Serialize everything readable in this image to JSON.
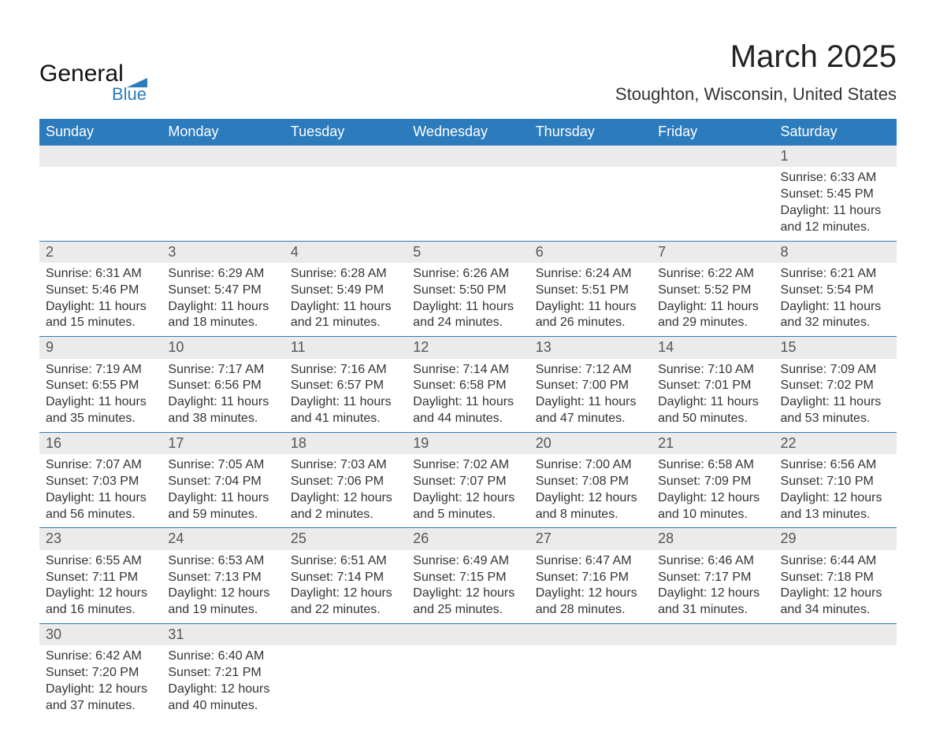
{
  "logo": {
    "text1": "General",
    "text2": "Blue",
    "icon_color": "#2b7bbd"
  },
  "header": {
    "month_title": "March 2025",
    "location": "Stoughton, Wisconsin, United States"
  },
  "colors": {
    "header_bg": "#2b7bbd",
    "header_text": "#ffffff",
    "daynum_bg": "#ebebeb",
    "row_border": "#2b7bbd",
    "body_text": "#333333"
  },
  "days_of_week": [
    "Sunday",
    "Monday",
    "Tuesday",
    "Wednesday",
    "Thursday",
    "Friday",
    "Saturday"
  ],
  "weeks": [
    [
      null,
      null,
      null,
      null,
      null,
      null,
      {
        "n": "1",
        "sunrise": "6:33 AM",
        "sunset": "5:45 PM",
        "daylight": "11 hours and 12 minutes."
      }
    ],
    [
      {
        "n": "2",
        "sunrise": "6:31 AM",
        "sunset": "5:46 PM",
        "daylight": "11 hours and 15 minutes."
      },
      {
        "n": "3",
        "sunrise": "6:29 AM",
        "sunset": "5:47 PM",
        "daylight": "11 hours and 18 minutes."
      },
      {
        "n": "4",
        "sunrise": "6:28 AM",
        "sunset": "5:49 PM",
        "daylight": "11 hours and 21 minutes."
      },
      {
        "n": "5",
        "sunrise": "6:26 AM",
        "sunset": "5:50 PM",
        "daylight": "11 hours and 24 minutes."
      },
      {
        "n": "6",
        "sunrise": "6:24 AM",
        "sunset": "5:51 PM",
        "daylight": "11 hours and 26 minutes."
      },
      {
        "n": "7",
        "sunrise": "6:22 AM",
        "sunset": "5:52 PM",
        "daylight": "11 hours and 29 minutes."
      },
      {
        "n": "8",
        "sunrise": "6:21 AM",
        "sunset": "5:54 PM",
        "daylight": "11 hours and 32 minutes."
      }
    ],
    [
      {
        "n": "9",
        "sunrise": "7:19 AM",
        "sunset": "6:55 PM",
        "daylight": "11 hours and 35 minutes."
      },
      {
        "n": "10",
        "sunrise": "7:17 AM",
        "sunset": "6:56 PM",
        "daylight": "11 hours and 38 minutes."
      },
      {
        "n": "11",
        "sunrise": "7:16 AM",
        "sunset": "6:57 PM",
        "daylight": "11 hours and 41 minutes."
      },
      {
        "n": "12",
        "sunrise": "7:14 AM",
        "sunset": "6:58 PM",
        "daylight": "11 hours and 44 minutes."
      },
      {
        "n": "13",
        "sunrise": "7:12 AM",
        "sunset": "7:00 PM",
        "daylight": "11 hours and 47 minutes."
      },
      {
        "n": "14",
        "sunrise": "7:10 AM",
        "sunset": "7:01 PM",
        "daylight": "11 hours and 50 minutes."
      },
      {
        "n": "15",
        "sunrise": "7:09 AM",
        "sunset": "7:02 PM",
        "daylight": "11 hours and 53 minutes."
      }
    ],
    [
      {
        "n": "16",
        "sunrise": "7:07 AM",
        "sunset": "7:03 PM",
        "daylight": "11 hours and 56 minutes."
      },
      {
        "n": "17",
        "sunrise": "7:05 AM",
        "sunset": "7:04 PM",
        "daylight": "11 hours and 59 minutes."
      },
      {
        "n": "18",
        "sunrise": "7:03 AM",
        "sunset": "7:06 PM",
        "daylight": "12 hours and 2 minutes."
      },
      {
        "n": "19",
        "sunrise": "7:02 AM",
        "sunset": "7:07 PM",
        "daylight": "12 hours and 5 minutes."
      },
      {
        "n": "20",
        "sunrise": "7:00 AM",
        "sunset": "7:08 PM",
        "daylight": "12 hours and 8 minutes."
      },
      {
        "n": "21",
        "sunrise": "6:58 AM",
        "sunset": "7:09 PM",
        "daylight": "12 hours and 10 minutes."
      },
      {
        "n": "22",
        "sunrise": "6:56 AM",
        "sunset": "7:10 PM",
        "daylight": "12 hours and 13 minutes."
      }
    ],
    [
      {
        "n": "23",
        "sunrise": "6:55 AM",
        "sunset": "7:11 PM",
        "daylight": "12 hours and 16 minutes."
      },
      {
        "n": "24",
        "sunrise": "6:53 AM",
        "sunset": "7:13 PM",
        "daylight": "12 hours and 19 minutes."
      },
      {
        "n": "25",
        "sunrise": "6:51 AM",
        "sunset": "7:14 PM",
        "daylight": "12 hours and 22 minutes."
      },
      {
        "n": "26",
        "sunrise": "6:49 AM",
        "sunset": "7:15 PM",
        "daylight": "12 hours and 25 minutes."
      },
      {
        "n": "27",
        "sunrise": "6:47 AM",
        "sunset": "7:16 PM",
        "daylight": "12 hours and 28 minutes."
      },
      {
        "n": "28",
        "sunrise": "6:46 AM",
        "sunset": "7:17 PM",
        "daylight": "12 hours and 31 minutes."
      },
      {
        "n": "29",
        "sunrise": "6:44 AM",
        "sunset": "7:18 PM",
        "daylight": "12 hours and 34 minutes."
      }
    ],
    [
      {
        "n": "30",
        "sunrise": "6:42 AM",
        "sunset": "7:20 PM",
        "daylight": "12 hours and 37 minutes."
      },
      {
        "n": "31",
        "sunrise": "6:40 AM",
        "sunset": "7:21 PM",
        "daylight": "12 hours and 40 minutes."
      },
      null,
      null,
      null,
      null,
      null
    ]
  ],
  "labels": {
    "sunrise_prefix": "Sunrise: ",
    "sunset_prefix": "Sunset: ",
    "daylight_prefix": "Daylight: "
  }
}
